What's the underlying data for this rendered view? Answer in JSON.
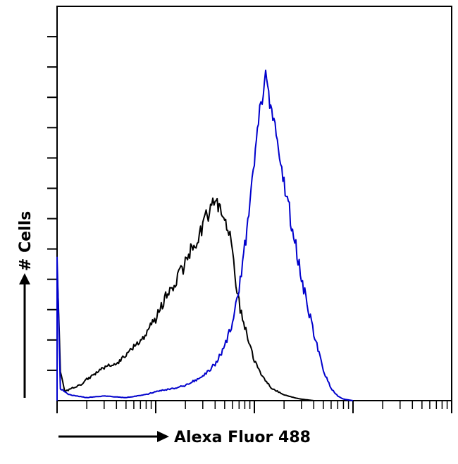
{
  "chart_data": {
    "type": "area",
    "title": "",
    "xlabel": "Alexa Fluor 488",
    "ylabel": "# Cells",
    "x_scale": "log",
    "xlim": [
      1,
      10000
    ],
    "ylim": [
      0,
      130
    ],
    "grid": false,
    "legend": "none",
    "series": [
      {
        "color": "#000000",
        "x": [
          1,
          1.08,
          1.2,
          1.4,
          1.7,
          2.0,
          2.5,
          3,
          4,
          5,
          6,
          8,
          10,
          12,
          15,
          20,
          25,
          30,
          35,
          40,
          45,
          50,
          55,
          60,
          65,
          70,
          80,
          90,
          100,
          120,
          150,
          200,
          250,
          300,
          400
        ],
        "y": [
          46,
          10,
          3,
          4,
          5,
          7,
          9,
          11,
          12,
          15,
          18,
          22,
          27,
          33,
          38,
          45,
          52,
          58,
          63,
          66,
          64,
          62,
          56,
          48,
          40,
          32,
          25,
          18,
          13,
          8,
          4,
          2,
          1,
          0.5,
          0
        ]
      },
      {
        "color": "#0000cc",
        "x": [
          1,
          1.08,
          1.3,
          2,
          3,
          5,
          8,
          10,
          15,
          20,
          30,
          40,
          50,
          60,
          70,
          80,
          90,
          100,
          110,
          120,
          130,
          150,
          180,
          200,
          250,
          300,
          400,
          500,
          600,
          700,
          800,
          1000
        ],
        "y": [
          46,
          4,
          2,
          1,
          1.5,
          1,
          2,
          3,
          4,
          5,
          8,
          12,
          18,
          26,
          36,
          50,
          65,
          80,
          92,
          100,
          106,
          96,
          82,
          72,
          55,
          40,
          22,
          10,
          4,
          1.5,
          0.5,
          0
        ]
      }
    ]
  }
}
